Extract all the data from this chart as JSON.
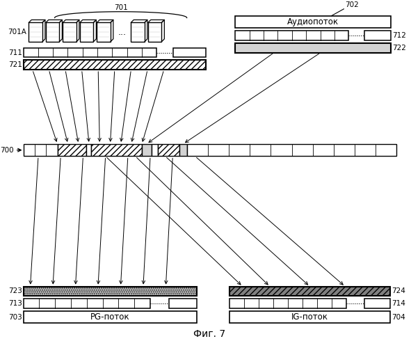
{
  "bg_color": "#ffffff",
  "labels": {
    "701": "701",
    "701A": "701A",
    "711": "711",
    "721": "721",
    "702": "702",
    "712": "712",
    "722": "722",
    "700": "700",
    "723": "723",
    "713": "713",
    "703": "703",
    "724": "724",
    "714": "714",
    "704": "704",
    "audio": "Аудиопоток",
    "pg": "PG-поток",
    "ig": "IG-поток",
    "fig7": "Фиг. 7"
  },
  "frame_count": 8,
  "dots_index": 6
}
